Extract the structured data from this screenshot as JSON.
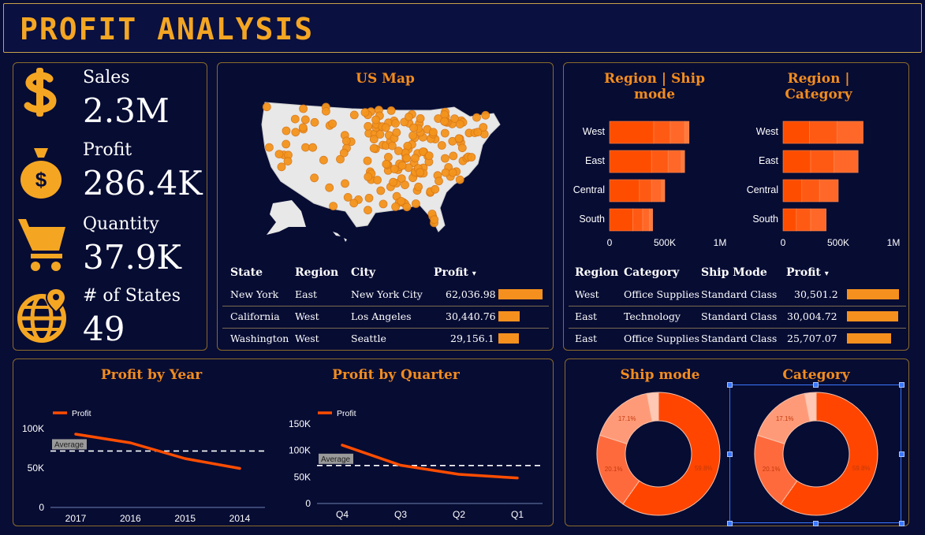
{
  "header": {
    "title": "PROFIT ANALYSIS"
  },
  "colors": {
    "accent": "#f4a623",
    "bar": "#ff4d00",
    "line": "#ff4d00",
    "frame": "#8a6b2a"
  },
  "kpis": [
    {
      "icon": "dollar-icon",
      "label": "Sales",
      "value": "2.3M"
    },
    {
      "icon": "money-bag-icon",
      "label": "Profit",
      "value": "286.4K"
    },
    {
      "icon": "shopping-cart-icon",
      "label": "Quantity",
      "value": "37.9K"
    },
    {
      "icon": "globe-pin-icon",
      "label": "# of States",
      "value": "49"
    }
  ],
  "map": {
    "title": "US Map",
    "table": {
      "headers": [
        "State",
        "Region",
        "City",
        "Profit"
      ],
      "sort_indicator": "▾",
      "rows": [
        {
          "state": "New York",
          "region": "East",
          "city": "New York City",
          "profit": "62,036.98",
          "profit_value": 62036.98
        },
        {
          "state": "California",
          "region": "West",
          "city": "Los Angeles",
          "profit": "30,440.76",
          "profit_value": 30440.76
        },
        {
          "state": "Washington",
          "region": "West",
          "city": "Seattle",
          "profit": "29,156.1",
          "profit_value": 29156.1
        }
      ]
    }
  },
  "region_tables": {
    "headers": [
      "Region",
      "Category",
      "Ship Mode",
      "Profit"
    ],
    "sort_indicator": "▾",
    "rows": [
      {
        "region": "West",
        "category": "Office Supplies",
        "ship_mode": "Standard Class",
        "profit": "30,501.2",
        "profit_value": 30501.2
      },
      {
        "region": "East",
        "category": "Technology",
        "ship_mode": "Standard Class",
        "profit": "30,004.72",
        "profit_value": 30004.72
      },
      {
        "region": "East",
        "category": "Office Supplies",
        "ship_mode": "Standard Class",
        "profit": "25,707.07",
        "profit_value": 25707.07
      }
    ]
  },
  "chart_data": [
    {
      "type": "bar",
      "title": "Region | Ship mode",
      "orientation": "horizontal",
      "stacked": true,
      "categories": [
        "West",
        "East",
        "Central",
        "South"
      ],
      "values": [
        720000,
        680000,
        500000,
        390000
      ],
      "segments": [
        [
          400000,
          150000,
          130000,
          40000
        ],
        [
          380000,
          150000,
          120000,
          30000
        ],
        [
          270000,
          110000,
          90000,
          30000
        ],
        [
          210000,
          90000,
          60000,
          30000
        ]
      ],
      "xticks": [
        "0",
        "500K",
        "1M"
      ],
      "xlim": [
        0,
        1000000
      ]
    },
    {
      "type": "bar",
      "title": "Region | Category",
      "orientation": "horizontal",
      "stacked": true,
      "categories": [
        "West",
        "East",
        "Central",
        "South"
      ],
      "values": [
        725000,
        680000,
        500000,
        390000
      ],
      "segments": [
        [
          240000,
          250000,
          235000
        ],
        [
          250000,
          210000,
          220000
        ],
        [
          170000,
          160000,
          170000
        ],
        [
          120000,
          130000,
          140000
        ]
      ],
      "xticks": [
        "0",
        "500K",
        "1M"
      ],
      "xlim": [
        0,
        1000000
      ]
    },
    {
      "type": "line",
      "title": "Profit by Year",
      "categories": [
        "2017",
        "2016",
        "2015",
        "2014"
      ],
      "series": [
        {
          "name": "Profit",
          "values": [
            93000,
            82000,
            62000,
            49500
          ]
        }
      ],
      "average": {
        "label": "Average",
        "value": 71600
      },
      "yticks": [
        "0",
        "50K",
        "100K"
      ],
      "ylim": [
        0,
        100000
      ]
    },
    {
      "type": "line",
      "title": "Profit by Quarter",
      "categories": [
        "Q4",
        "Q3",
        "Q2",
        "Q1"
      ],
      "series": [
        {
          "name": "Profit",
          "values": [
            110000,
            72000,
            55000,
            48000
          ]
        }
      ],
      "average": {
        "label": "Average",
        "value": 71600
      },
      "yticks": [
        "0",
        "50K",
        "100K",
        "150K"
      ],
      "ylim": [
        0,
        150000
      ]
    },
    {
      "type": "pie",
      "title": "Ship mode",
      "donut": true,
      "slices": [
        {
          "label": "59.8%",
          "value": 59.8,
          "color": "#ff4500"
        },
        {
          "label": "20.1%",
          "value": 20.1,
          "color": "#ff6a3d"
        },
        {
          "label": "17.1%",
          "value": 17.1,
          "color": "#ff9a78"
        },
        {
          "label": "",
          "value": 3.0,
          "color": "#ffc8b4"
        }
      ]
    },
    {
      "type": "pie",
      "title": "Category",
      "donut": true,
      "selected": true,
      "slices": [
        {
          "label": "59.8%",
          "value": 59.8,
          "color": "#ff4500"
        },
        {
          "label": "20.1%",
          "value": 20.1,
          "color": "#ff6a3d"
        },
        {
          "label": "17.1%",
          "value": 17.1,
          "color": "#ff9a78"
        },
        {
          "label": "",
          "value": 3.0,
          "color": "#ffc8b4"
        }
      ]
    }
  ]
}
